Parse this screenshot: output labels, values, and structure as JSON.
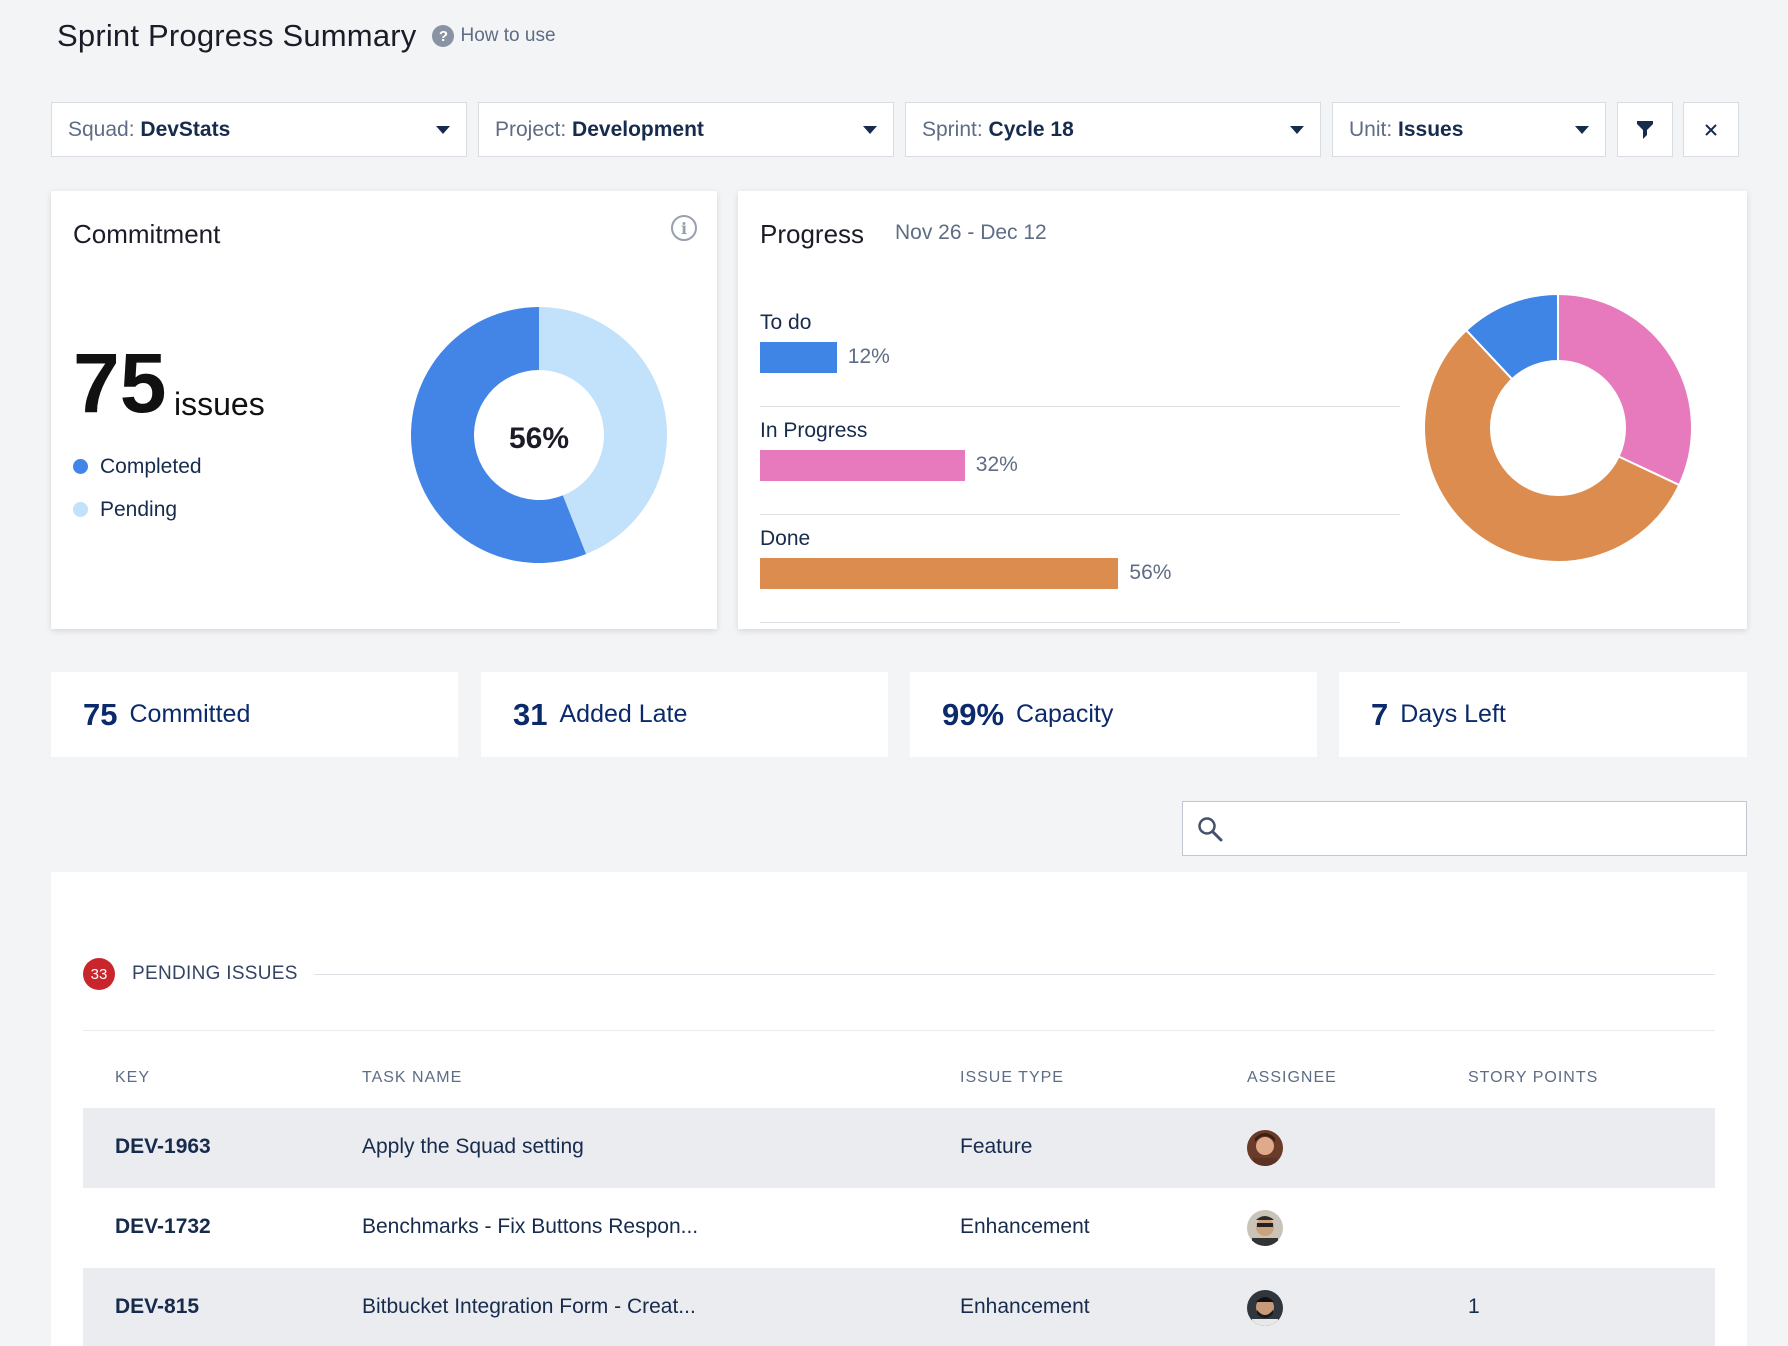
{
  "header": {
    "title": "Sprint Progress Summary",
    "how_to_use": "How to use"
  },
  "filters": [
    {
      "label": "Squad:",
      "value": "DevStats"
    },
    {
      "label": "Project:",
      "value": "Development"
    },
    {
      "label": "Sprint:",
      "value": "Cycle 18"
    },
    {
      "label": "Unit:",
      "value": "Issues"
    }
  ],
  "filter_icon": "funnel-icon",
  "clear_icon": "close-icon",
  "commitment": {
    "title": "Commitment",
    "total": "75",
    "unit": "issues",
    "center_label": "56%",
    "completed_fraction": 0.56,
    "legend": [
      {
        "label": "Completed",
        "color": "#4285e6"
      },
      {
        "label": "Pending",
        "color": "#c2e1fb"
      }
    ]
  },
  "progress": {
    "title": "Progress",
    "date_range": "Nov 26 - Dec 12",
    "rows": [
      {
        "label": "To do",
        "pct_label": "12%",
        "value": 12,
        "color": "#3f85e6"
      },
      {
        "label": "In Progress",
        "pct_label": "32%",
        "value": 32,
        "color": "#e67abd"
      },
      {
        "label": "Done",
        "pct_label": "56%",
        "value": 56,
        "color": "#db8c4e"
      }
    ]
  },
  "stats": [
    {
      "num": "75",
      "text": "Committed"
    },
    {
      "num": "31",
      "text": "Added Late"
    },
    {
      "num": "99%",
      "text": "Capacity"
    },
    {
      "num": "7",
      "text": "Days Left"
    }
  ],
  "search": {
    "placeholder": "",
    "icon": "search-icon"
  },
  "pending": {
    "count": "33",
    "label": "PENDING ISSUES",
    "columns": [
      "KEY",
      "TASK NAME",
      "ISSUE TYPE",
      "ASSIGNEE",
      "STORY POINTS"
    ],
    "rows": [
      {
        "key": "DEV-1963",
        "task": "Apply the Squad setting",
        "type": "Feature",
        "points": ""
      },
      {
        "key": "DEV-1732",
        "task": "Benchmarks - Fix Buttons Respon...",
        "type": "Enhancement",
        "points": ""
      },
      {
        "key": "DEV-815",
        "task": "Bitbucket Integration Form - Creat...",
        "type": "Enhancement",
        "points": "1"
      }
    ]
  }
}
